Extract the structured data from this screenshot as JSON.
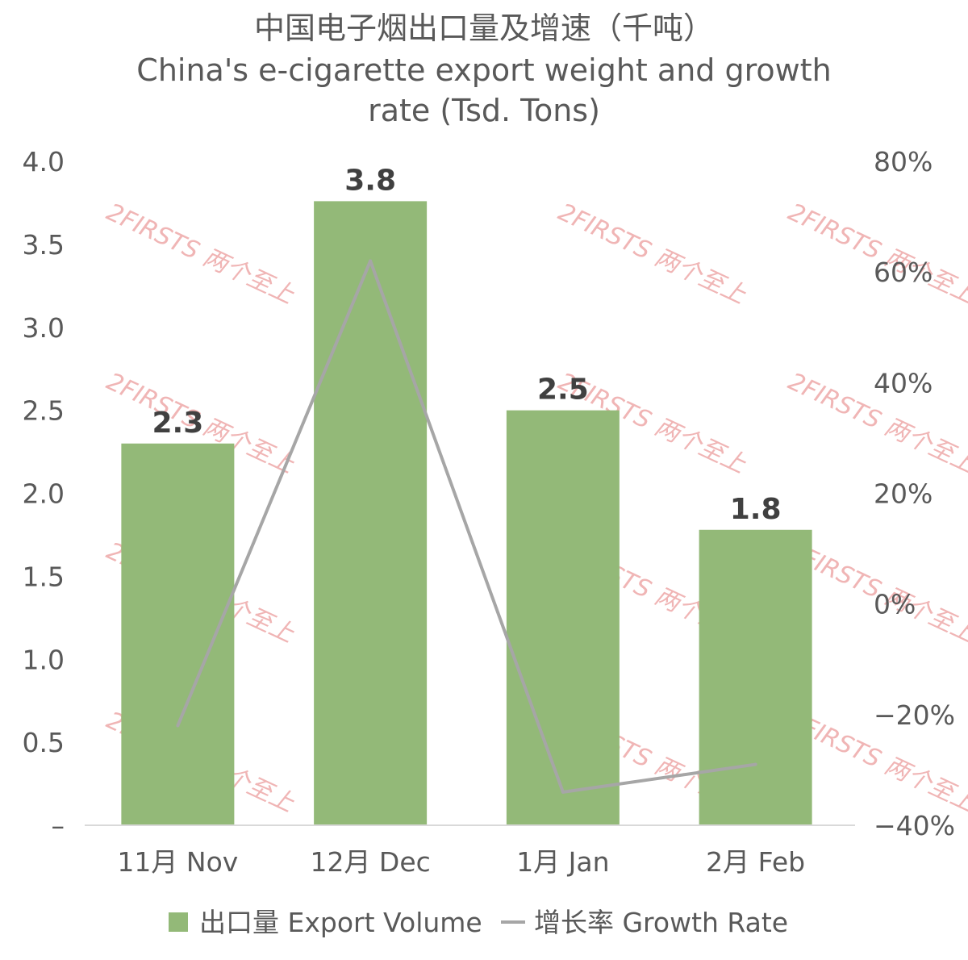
{
  "chart_data": {
    "type": "bar+line",
    "title_line1": "中国电子烟出口量及增速（千吨）",
    "title_line2": "China's e-cigarette export weight and growth",
    "title_line3": "rate (Tsd. Tons)",
    "categories": [
      "11月 Nov",
      "12月 Dec",
      "1月 Jan",
      "2月 Feb"
    ],
    "series": [
      {
        "name": "出口量 Export Volume",
        "type": "bar",
        "axis": "left",
        "color": "#93b978",
        "values": [
          2.3,
          3.76,
          2.5,
          1.78
        ],
        "labels": [
          "2.3",
          "3.8",
          "2.5",
          "1.8"
        ]
      },
      {
        "name": "增长率 Growth Rate",
        "type": "line",
        "axis": "right",
        "color": "#a6a6a6",
        "values": [
          -22,
          62,
          -34,
          -29
        ]
      }
    ],
    "y_left": {
      "ylim": [
        0,
        4.0
      ],
      "ticks": [
        0,
        0.5,
        1.0,
        1.5,
        2.0,
        2.5,
        3.0,
        3.5,
        4.0
      ],
      "tick_labels": [
        "–",
        "0.5",
        "1.0",
        "1.5",
        "2.0",
        "2.5",
        "3.0",
        "3.5",
        "4.0"
      ]
    },
    "y_right": {
      "ylim": [
        -40,
        80
      ],
      "ticks": [
        -40,
        -20,
        0,
        20,
        40,
        60,
        80
      ],
      "tick_labels": [
        "−40%",
        "−20%",
        "0%",
        "20%",
        "40%",
        "60%",
        "80%"
      ]
    },
    "grid": false,
    "legend_position": "bottom",
    "watermark": "2FIRSTS 两个至上"
  }
}
